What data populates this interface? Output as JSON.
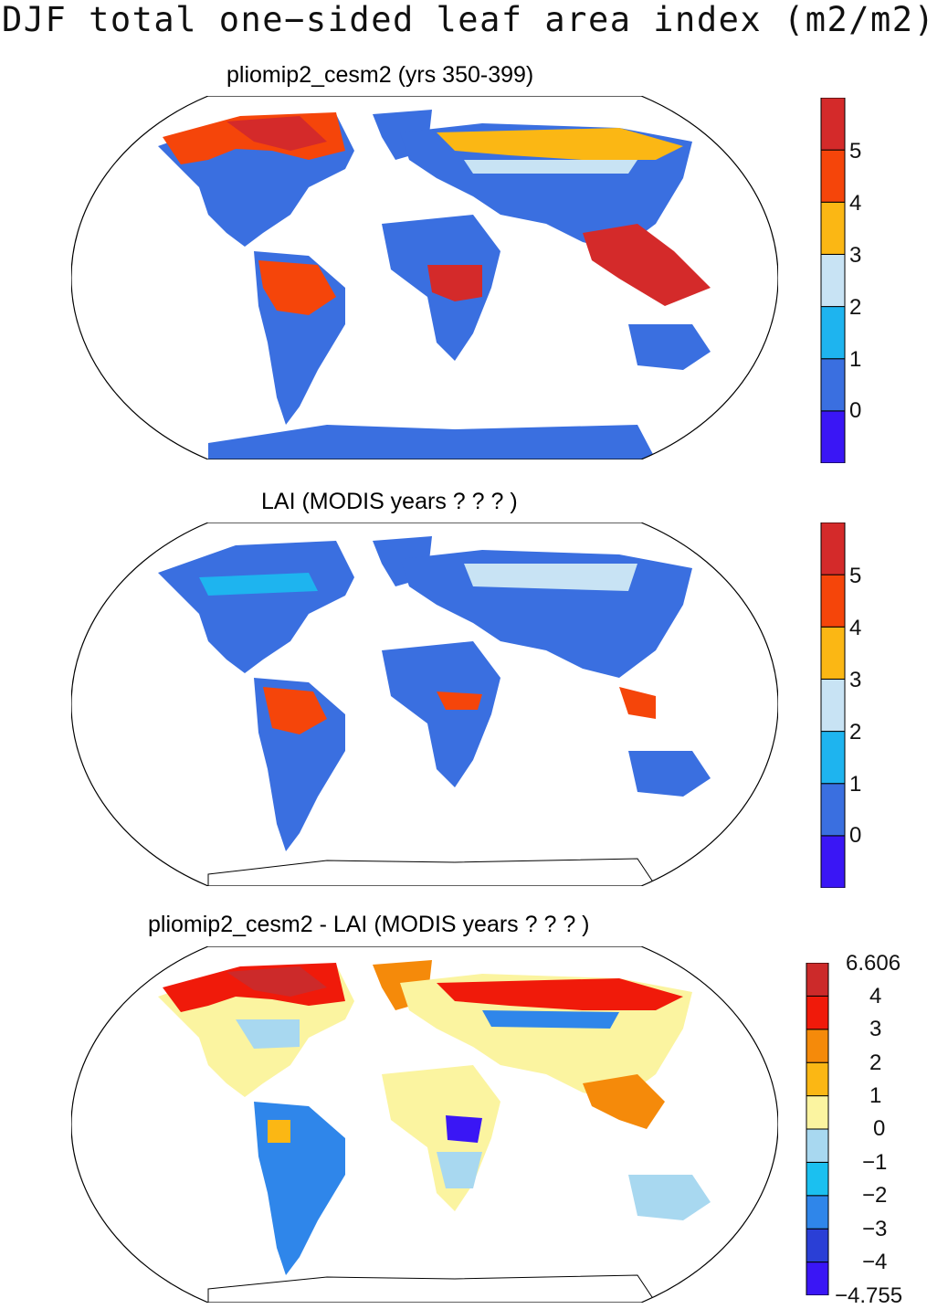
{
  "figure": {
    "title": "DJF total one−sided leaf area index (m2/m2)"
  },
  "panels": [
    {
      "id": "model",
      "title": "pliomip2_cesm2 (yrs 350-399)",
      "colorbar": {
        "colors": [
          "#3a16f5",
          "#3a6fe0",
          "#1eb4ef",
          "#c8e3f4",
          "#fbb714",
          "#f5450a",
          "#d42a2a"
        ],
        "tick_labels": [
          "0",
          "1",
          "2",
          "3",
          "4",
          "5"
        ]
      }
    },
    {
      "id": "obs",
      "title": "LAI (MODIS years ? ? ? )",
      "colorbar": {
        "colors": [
          "#3a16f5",
          "#3a6fe0",
          "#1eb4ef",
          "#c8e3f4",
          "#fbb714",
          "#f5450a",
          "#d42a2a"
        ],
        "tick_labels": [
          "0",
          "1",
          "2",
          "3",
          "4",
          "5"
        ]
      }
    },
    {
      "id": "diff",
      "title": "pliomip2_cesm2 - LAI (MODIS years ? ? ? )",
      "colorbar": {
        "colors": [
          "#3a16f5",
          "#2a3fd6",
          "#2f86ea",
          "#1bc0f0",
          "#a8d8f0",
          "#fbf4a0",
          "#fbb714",
          "#f58a0a",
          "#f01a0a",
          "#cc2a2a"
        ],
        "tick_labels": [
          "6.606",
          "4",
          "3",
          "2",
          "1",
          "0",
          "−1",
          "−2",
          "−3",
          "−4",
          "−4.755"
        ]
      }
    }
  ],
  "colors": {
    "land_base": "#3a6fe0",
    "diff_base": "#fbf4a0",
    "outline": "#000000"
  }
}
